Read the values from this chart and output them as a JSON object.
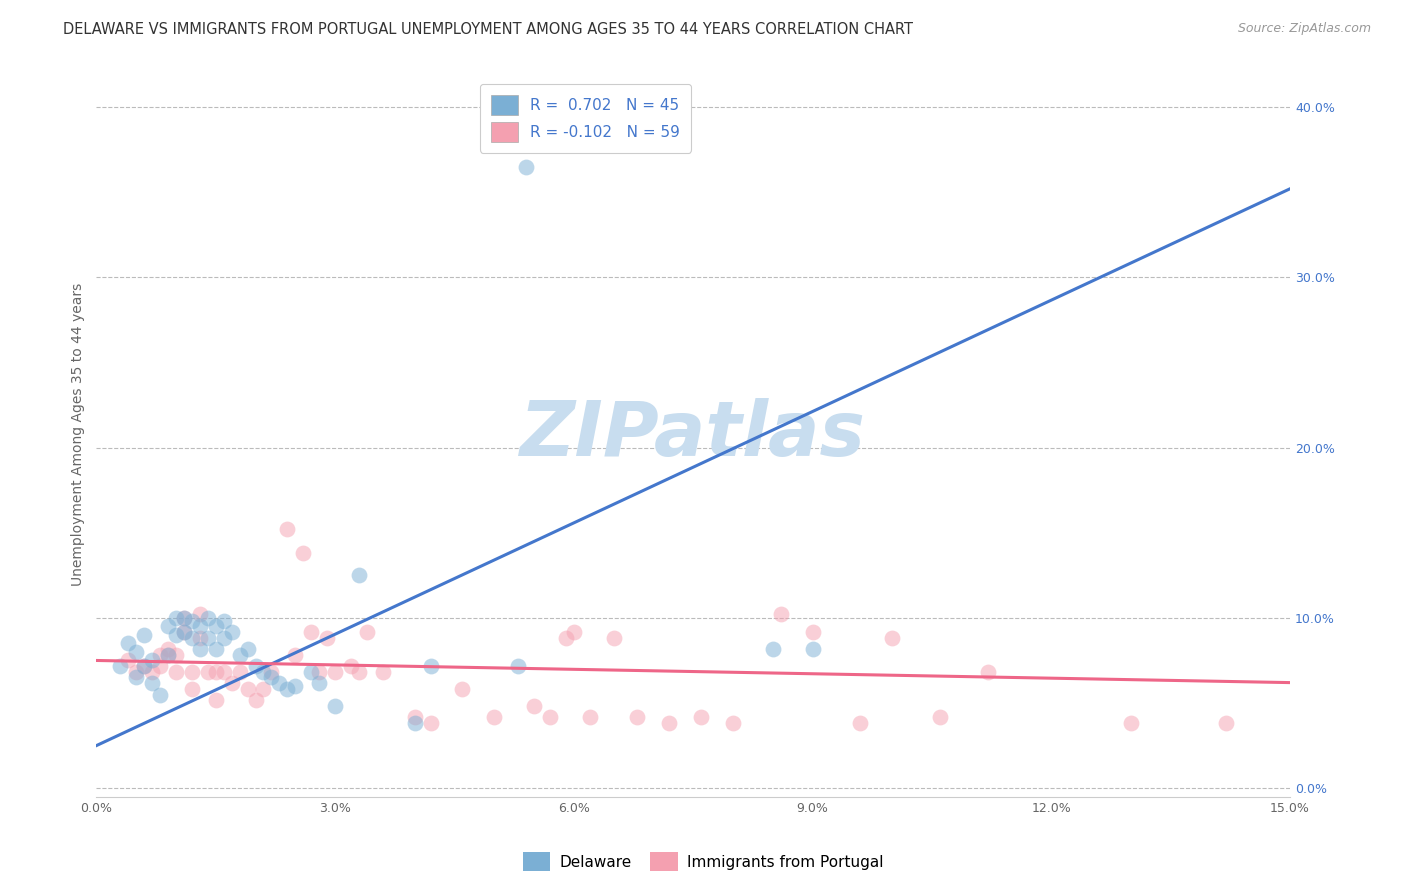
{
  "title": "DELAWARE VS IMMIGRANTS FROM PORTUGAL UNEMPLOYMENT AMONG AGES 35 TO 44 YEARS CORRELATION CHART",
  "source": "Source: ZipAtlas.com",
  "ylabel": "Unemployment Among Ages 35 to 44 years",
  "xlim": [
    0.0,
    0.15
  ],
  "ylim": [
    -0.005,
    0.42
  ],
  "xticks": [
    0.0,
    0.03,
    0.06,
    0.09,
    0.12,
    0.15
  ],
  "xticklabels": [
    "0.0%",
    "3.0%",
    "6.0%",
    "9.0%",
    "12.0%",
    "15.0%"
  ],
  "yticks_right": [
    0.0,
    0.1,
    0.2,
    0.3,
    0.4
  ],
  "yticklabels_right": [
    "0.0%",
    "10.0%",
    "20.0%",
    "30.0%",
    "40.0%"
  ],
  "watermark": "ZIPatlas",
  "legend_r1_prefix": "R = ",
  "legend_r1_val": " 0.702",
  "legend_r1_n": "   N = 45",
  "legend_r2_prefix": "R = ",
  "legend_r2_val": "-0.102",
  "legend_r2_n": "   N = 59",
  "blue_color": "#7BAFD4",
  "pink_color": "#F4A0B0",
  "blue_line_color": "#4477CC",
  "pink_line_color": "#EE6688",
  "blue_scatter": [
    [
      0.003,
      0.072
    ],
    [
      0.004,
      0.085
    ],
    [
      0.005,
      0.08
    ],
    [
      0.005,
      0.065
    ],
    [
      0.006,
      0.09
    ],
    [
      0.006,
      0.072
    ],
    [
      0.007,
      0.075
    ],
    [
      0.007,
      0.062
    ],
    [
      0.008,
      0.055
    ],
    [
      0.009,
      0.095
    ],
    [
      0.009,
      0.078
    ],
    [
      0.01,
      0.1
    ],
    [
      0.01,
      0.09
    ],
    [
      0.011,
      0.1
    ],
    [
      0.011,
      0.092
    ],
    [
      0.012,
      0.098
    ],
    [
      0.012,
      0.088
    ],
    [
      0.013,
      0.095
    ],
    [
      0.013,
      0.082
    ],
    [
      0.014,
      0.1
    ],
    [
      0.014,
      0.088
    ],
    [
      0.015,
      0.095
    ],
    [
      0.015,
      0.082
    ],
    [
      0.016,
      0.098
    ],
    [
      0.016,
      0.088
    ],
    [
      0.017,
      0.092
    ],
    [
      0.018,
      0.078
    ],
    [
      0.019,
      0.082
    ],
    [
      0.02,
      0.072
    ],
    [
      0.021,
      0.068
    ],
    [
      0.022,
      0.065
    ],
    [
      0.023,
      0.062
    ],
    [
      0.024,
      0.058
    ],
    [
      0.025,
      0.06
    ],
    [
      0.027,
      0.068
    ],
    [
      0.028,
      0.062
    ],
    [
      0.03,
      0.048
    ],
    [
      0.033,
      0.125
    ],
    [
      0.04,
      0.038
    ],
    [
      0.042,
      0.072
    ],
    [
      0.053,
      0.072
    ],
    [
      0.054,
      0.365
    ],
    [
      0.07,
      0.385
    ],
    [
      0.085,
      0.082
    ],
    [
      0.09,
      0.082
    ]
  ],
  "pink_scatter": [
    [
      0.004,
      0.075
    ],
    [
      0.005,
      0.068
    ],
    [
      0.006,
      0.072
    ],
    [
      0.007,
      0.068
    ],
    [
      0.008,
      0.078
    ],
    [
      0.008,
      0.072
    ],
    [
      0.009,
      0.082
    ],
    [
      0.009,
      0.078
    ],
    [
      0.01,
      0.078
    ],
    [
      0.01,
      0.068
    ],
    [
      0.011,
      0.1
    ],
    [
      0.011,
      0.092
    ],
    [
      0.012,
      0.068
    ],
    [
      0.012,
      0.058
    ],
    [
      0.013,
      0.102
    ],
    [
      0.013,
      0.088
    ],
    [
      0.014,
      0.068
    ],
    [
      0.015,
      0.068
    ],
    [
      0.015,
      0.052
    ],
    [
      0.016,
      0.068
    ],
    [
      0.017,
      0.062
    ],
    [
      0.018,
      0.068
    ],
    [
      0.019,
      0.058
    ],
    [
      0.02,
      0.052
    ],
    [
      0.021,
      0.058
    ],
    [
      0.022,
      0.068
    ],
    [
      0.024,
      0.152
    ],
    [
      0.025,
      0.078
    ],
    [
      0.026,
      0.138
    ],
    [
      0.027,
      0.092
    ],
    [
      0.028,
      0.068
    ],
    [
      0.029,
      0.088
    ],
    [
      0.03,
      0.068
    ],
    [
      0.032,
      0.072
    ],
    [
      0.033,
      0.068
    ],
    [
      0.034,
      0.092
    ],
    [
      0.036,
      0.068
    ],
    [
      0.04,
      0.042
    ],
    [
      0.042,
      0.038
    ],
    [
      0.046,
      0.058
    ],
    [
      0.05,
      0.042
    ],
    [
      0.055,
      0.048
    ],
    [
      0.057,
      0.042
    ],
    [
      0.059,
      0.088
    ],
    [
      0.06,
      0.092
    ],
    [
      0.062,
      0.042
    ],
    [
      0.065,
      0.088
    ],
    [
      0.068,
      0.042
    ],
    [
      0.072,
      0.038
    ],
    [
      0.076,
      0.042
    ],
    [
      0.08,
      0.038
    ],
    [
      0.086,
      0.102
    ],
    [
      0.09,
      0.092
    ],
    [
      0.096,
      0.038
    ],
    [
      0.1,
      0.088
    ],
    [
      0.106,
      0.042
    ],
    [
      0.112,
      0.068
    ],
    [
      0.13,
      0.038
    ],
    [
      0.142,
      0.038
    ]
  ],
  "blue_line_x": [
    0.0,
    0.15
  ],
  "blue_line_y": [
    0.025,
    0.352
  ],
  "pink_line_x": [
    0.0,
    0.15
  ],
  "pink_line_y": [
    0.075,
    0.062
  ],
  "title_fontsize": 10.5,
  "source_fontsize": 9,
  "axis_label_fontsize": 10,
  "tick_fontsize": 9,
  "legend_fontsize": 11,
  "scatter_size": 130,
  "scatter_alpha": 0.5,
  "background_color": "#FFFFFF",
  "grid_color": "#BBBBBB",
  "watermark_color": "#C8DDEF",
  "watermark_fontsize": 55
}
